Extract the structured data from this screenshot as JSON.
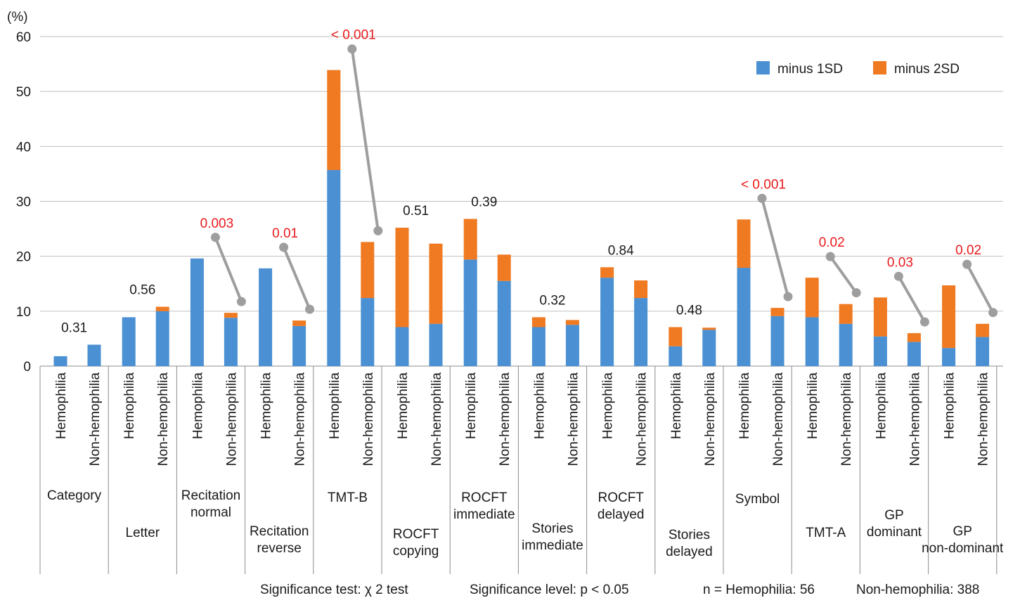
{
  "chart_data": {
    "type": "bar",
    "stacked": true,
    "y_unit_label": "(%)",
    "ylim": [
      0,
      60
    ],
    "yticks": [
      0,
      10,
      20,
      30,
      40,
      50,
      60
    ],
    "grid": true,
    "legend_position": "top-right",
    "series": [
      {
        "name": "minus 1SD",
        "color": "#4a90d3"
      },
      {
        "name": "minus 2SD",
        "color": "#ef7a22"
      }
    ],
    "groups": [
      {
        "label": [
          "Category"
        ],
        "p_value": "0.31",
        "significant": false,
        "bars": [
          {
            "label": "Hemophilia",
            "minus_1sd": 1.8,
            "minus_2sd": 0
          },
          {
            "label": "Non-hemophilia",
            "minus_1sd": 3.9,
            "minus_2sd": 0
          }
        ]
      },
      {
        "label": [
          "Letter"
        ],
        "p_value": "0.56",
        "significant": false,
        "bars": [
          {
            "label": "Hemophilia",
            "minus_1sd": 8.9,
            "minus_2sd": 0
          },
          {
            "label": "Non-hemophilia",
            "minus_1sd": 10.0,
            "minus_2sd": 0.8
          }
        ]
      },
      {
        "label": [
          "Recitation",
          "normal"
        ],
        "p_value": "0.003",
        "significant": true,
        "bars": [
          {
            "label": "Hemophilia",
            "minus_1sd": 19.6,
            "minus_2sd": 0
          },
          {
            "label": "Non-hemophilia",
            "minus_1sd": 8.8,
            "minus_2sd": 0.9
          }
        ]
      },
      {
        "label": [
          "Recitation",
          "reverse"
        ],
        "p_value": "0.01",
        "significant": true,
        "bars": [
          {
            "label": "Hemophilia",
            "minus_1sd": 17.8,
            "minus_2sd": 0
          },
          {
            "label": "Non-hemophilia",
            "minus_1sd": 7.3,
            "minus_2sd": 1.0
          }
        ]
      },
      {
        "label": [
          "TMT-B"
        ],
        "p_value": "< 0.001",
        "significant": true,
        "bars": [
          {
            "label": "Hemophilia",
            "minus_1sd": 35.7,
            "minus_2sd": 18.2
          },
          {
            "label": "Non-hemophilia",
            "minus_1sd": 12.4,
            "minus_2sd": 10.2
          }
        ]
      },
      {
        "label": [
          "ROCFT",
          "copying"
        ],
        "p_value": "0.51",
        "significant": false,
        "bars": [
          {
            "label": "Hemophilia",
            "minus_1sd": 7.1,
            "minus_2sd": 18.1
          },
          {
            "label": "Non-hemophilia",
            "minus_1sd": 7.7,
            "minus_2sd": 14.6
          }
        ]
      },
      {
        "label": [
          "ROCFT",
          "immediate"
        ],
        "p_value": "0.39",
        "significant": false,
        "bars": [
          {
            "label": "Hemophilia",
            "minus_1sd": 19.4,
            "minus_2sd": 7.4
          },
          {
            "label": "Non-hemophilia",
            "minus_1sd": 15.5,
            "minus_2sd": 4.8
          }
        ]
      },
      {
        "label": [
          "Stories",
          "immediate"
        ],
        "p_value": "0.32",
        "significant": false,
        "bars": [
          {
            "label": "Hemophilia",
            "minus_1sd": 7.1,
            "minus_2sd": 1.8
          },
          {
            "label": "Non-hemophilia",
            "minus_1sd": 7.5,
            "minus_2sd": 0.9
          }
        ]
      },
      {
        "label": [
          "ROCFT",
          "delayed"
        ],
        "p_value": "0.84",
        "significant": false,
        "bars": [
          {
            "label": "Hemophilia",
            "minus_1sd": 16.1,
            "minus_2sd": 1.9
          },
          {
            "label": "Non-hemophilia",
            "minus_1sd": 12.4,
            "minus_2sd": 3.2
          }
        ]
      },
      {
        "label": [
          "Stories",
          "delayed"
        ],
        "p_value": "0.48",
        "significant": false,
        "bars": [
          {
            "label": "Hemophilia",
            "minus_1sd": 3.6,
            "minus_2sd": 3.5
          },
          {
            "label": "Non-hemophilia",
            "minus_1sd": 6.6,
            "minus_2sd": 0.4
          }
        ]
      },
      {
        "label": [
          "Symbol"
        ],
        "p_value": "< 0.001",
        "significant": true,
        "bars": [
          {
            "label": "Hemophilia",
            "minus_1sd": 17.9,
            "minus_2sd": 8.8
          },
          {
            "label": "Non-hemophilia",
            "minus_1sd": 9.1,
            "minus_2sd": 1.5
          }
        ]
      },
      {
        "label": [
          "TMT-A"
        ],
        "p_value": "0.02",
        "significant": true,
        "bars": [
          {
            "label": "Hemophilia",
            "minus_1sd": 8.9,
            "minus_2sd": 7.2
          },
          {
            "label": "Non-hemophilia",
            "minus_1sd": 7.7,
            "minus_2sd": 3.6
          }
        ]
      },
      {
        "label": [
          "GP",
          "dominant"
        ],
        "p_value": "0.03",
        "significant": true,
        "bars": [
          {
            "label": "Hemophilia",
            "minus_1sd": 5.4,
            "minus_2sd": 7.1
          },
          {
            "label": "Non-hemophilia",
            "minus_1sd": 4.4,
            "minus_2sd": 1.6
          }
        ]
      },
      {
        "label": [
          "GP",
          "non-dominant"
        ],
        "p_value": "0.02",
        "significant": true,
        "bars": [
          {
            "label": "Hemophilia",
            "minus_1sd": 3.3,
            "minus_2sd": 11.4
          },
          {
            "label": "Non-hemophilia",
            "minus_1sd": 5.3,
            "minus_2sd": 2.4
          }
        ]
      }
    ],
    "footnotes": [
      "Significance test: χ 2 test",
      "Significance level: p < 0.05",
      "n = Hemophilia: 56",
      "Non-hemophilia: 388"
    ],
    "colors": {
      "significant_p": "#e8191c",
      "nonsignificant_p": "#1a1a1a",
      "connector": "#9e9e9e",
      "grid": "#bfbfbf",
      "axis": "#8c8c8c"
    }
  }
}
